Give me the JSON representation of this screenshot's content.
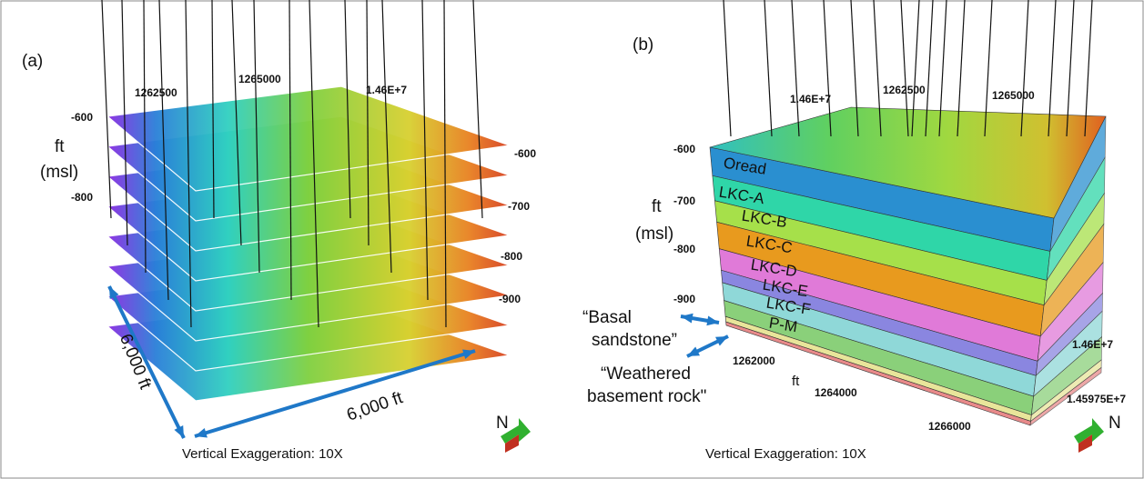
{
  "panels": [
    {
      "label": "(a)",
      "top_axis": [
        "1262500",
        "1265000",
        "1.46E+7"
      ],
      "depth_left": [
        "-600",
        "-800"
      ],
      "unit": [
        "ft",
        "(msl)"
      ],
      "depth_right": [
        "-600",
        "-700",
        "-800",
        "-900"
      ],
      "dimensions": [
        "6,000 ft",
        "6,000 ft"
      ],
      "caption": "Vertical Exaggeration: 10X",
      "north": "N"
    },
    {
      "label": "(b)",
      "top_axis": [
        "1.46E+7",
        "1262500",
        "1265000"
      ],
      "depth_left": [
        "-600",
        "-700",
        "-800",
        "-900"
      ],
      "unit": [
        "ft",
        "(msl)"
      ],
      "layers": [
        "Oread",
        "LKC-A",
        "LKC-B",
        "LKC-C",
        "LKC-D",
        "LKC-E",
        "LKC-F",
        "P-M"
      ],
      "annotations": [
        "“Basal",
        "sandstone”",
        "“Weathered",
        "basement rock\""
      ],
      "bottom_axis": [
        "1262000",
        "ft",
        "1264000",
        "1266000"
      ],
      "right_axis": [
        "1.46E+7",
        "1.45975E+7"
      ],
      "caption": "Vertical Exaggeration: 10X",
      "north": "N"
    }
  ]
}
